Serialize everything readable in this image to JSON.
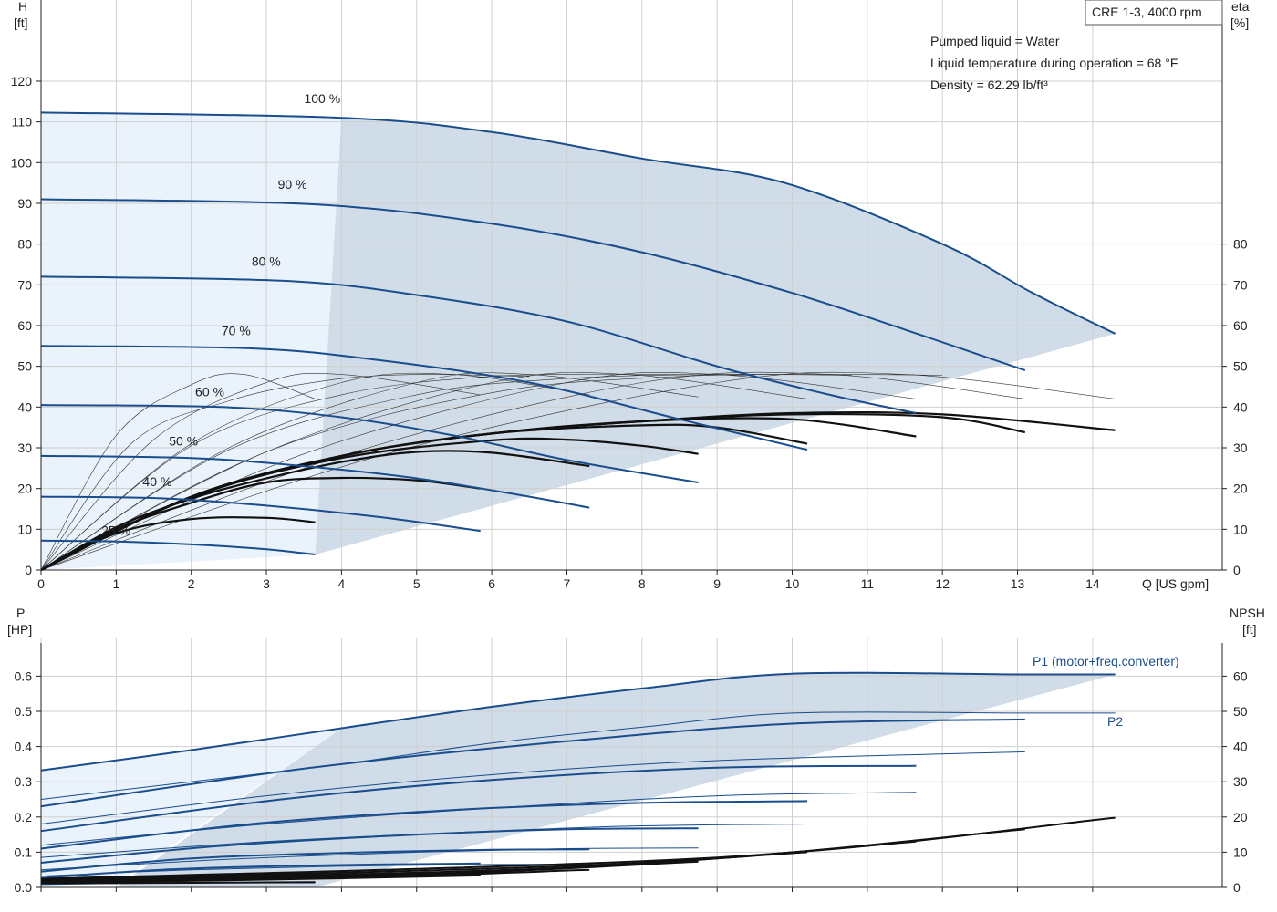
{
  "chart_data": [
    {
      "type": "line",
      "title": "CRE 1-3, 4000 rpm",
      "annotations": [
        "Pumped liquid = Water",
        "Liquid temperature during operation = 68 °F",
        "Density = 62.29 lb/ft³"
      ],
      "xlabel": "Q [US gpm]",
      "ylabel_left": "H",
      "ylabel_left_unit": "[ft]",
      "ylabel_right": "eta",
      "ylabel_right_unit": "[%]",
      "xlim": [
        0,
        14.5
      ],
      "ylim_left": [
        0,
        125
      ],
      "ylim_right": [
        0,
        125
      ],
      "xticks": [
        0,
        1,
        2,
        3,
        4,
        5,
        6,
        7,
        8,
        9,
        10,
        11,
        12,
        13,
        14
      ],
      "yticks_left": [
        0,
        10,
        20,
        30,
        40,
        50,
        60,
        70,
        80,
        90,
        100,
        110,
        120
      ],
      "yticks_right": [
        0,
        10,
        20,
        30,
        40,
        50,
        60,
        70,
        80
      ],
      "accent_color": "#1a4d8c",
      "fill_color": "#d0dce8",
      "fill_light_color": "#eaf2fb",
      "head_series": [
        {
          "name": "100 %",
          "label_at": [
            3.6,
            115.5
          ],
          "x": [
            0,
            4.0,
            6,
            8,
            9.9,
            12,
            13.2,
            14.3
          ],
          "y": [
            112.3,
            111,
            107.5,
            101,
            95,
            80,
            68,
            58
          ]
        },
        {
          "name": "90 %",
          "label_at": [
            3.25,
            94.5
          ],
          "x": [
            0,
            3.6,
            6,
            8,
            10,
            11.5,
            13.1
          ],
          "y": [
            91,
            89.8,
            85,
            78,
            68,
            59,
            49
          ]
        },
        {
          "name": "80 %",
          "label_at": [
            2.9,
            75.5
          ],
          "x": [
            0,
            3.2,
            5,
            7,
            9,
            10.5,
            11.65
          ],
          "y": [
            72,
            71,
            67.5,
            61,
            50,
            43,
            38.5
          ]
        },
        {
          "name": "70 %",
          "label_at": [
            2.5,
            58.5
          ],
          "x": [
            0,
            2.8,
            4.5,
            6.5,
            8.5,
            10.2
          ],
          "y": [
            55,
            54.4,
            51.5,
            46,
            37,
            29.5
          ]
        },
        {
          "name": "60 %",
          "label_at": [
            2.15,
            43.5
          ],
          "x": [
            0,
            2.4,
            4,
            5.5,
            7,
            8.75
          ],
          "y": [
            40.5,
            40,
            37.5,
            33,
            27,
            21.5
          ]
        },
        {
          "name": "50 %",
          "label_at": [
            1.8,
            31.5
          ],
          "x": [
            0,
            2.0,
            3.5,
            5,
            6.5,
            7.3
          ],
          "y": [
            28,
            27.5,
            25.5,
            22.5,
            18,
            15.3
          ]
        },
        {
          "name": "40 %",
          "label_at": [
            1.45,
            21.5
          ],
          "x": [
            0,
            1.6,
            3,
            4.5,
            5.85
          ],
          "y": [
            18,
            17.6,
            15.8,
            13,
            9.6
          ]
        },
        {
          "name": "25 %",
          "label_at": [
            0.9,
            9.5
          ],
          "x": [
            0,
            1.0,
            2,
            3,
            3.65
          ],
          "y": [
            7.2,
            7,
            6.3,
            5.1,
            3.8
          ]
        }
      ],
      "eta_series": [
        {
          "x": [
            0,
            1,
            2,
            3,
            3.65
          ],
          "y": [
            0,
            9,
            12.5,
            12.8,
            11.7
          ]
        },
        {
          "x": [
            0,
            1,
            2,
            3,
            4,
            5,
            5.85
          ],
          "y": [
            0,
            10,
            16.5,
            21.5,
            22.6,
            22,
            20
          ]
        },
        {
          "x": [
            0,
            1,
            2,
            3,
            4,
            5,
            6,
            7.3
          ],
          "y": [
            0,
            10.5,
            17.5,
            22.5,
            26.5,
            29,
            28.8,
            25.5
          ]
        },
        {
          "x": [
            0,
            2,
            4,
            6,
            7,
            8,
            8.75
          ],
          "y": [
            0,
            17.8,
            27.5,
            31.8,
            32,
            30.5,
            28.5
          ]
        },
        {
          "x": [
            0,
            2,
            4,
            6,
            8,
            9,
            10.2
          ],
          "y": [
            0,
            18,
            28,
            33.5,
            35.5,
            35,
            31
          ]
        },
        {
          "x": [
            0,
            2,
            4,
            6,
            8,
            10,
            11.65
          ],
          "y": [
            0,
            18,
            28,
            33.5,
            36.5,
            37,
            32.8
          ]
        },
        {
          "x": [
            0,
            2,
            4,
            6,
            8,
            10,
            12,
            13.1
          ],
          "y": [
            0,
            18,
            28,
            33.5,
            36.5,
            38.2,
            37.5,
            33.8
          ]
        },
        {
          "x": [
            0,
            2,
            4,
            6,
            8,
            10,
            12,
            14.3
          ],
          "y": [
            0,
            18,
            28,
            33.5,
            36.5,
            38.5,
            38.2,
            34.3
          ]
        }
      ],
      "iso_series": [
        {
          "x": [
            0,
            1,
            2,
            2.7,
            3.65
          ],
          "y": [
            0,
            33,
            45.5,
            48,
            42
          ]
        },
        {
          "x": [
            0,
            1.5,
            3,
            4,
            5.85
          ],
          "y": [
            0,
            32,
            46,
            48,
            43
          ]
        },
        {
          "x": [
            0,
            2,
            4,
            5.5,
            7.3
          ],
          "y": [
            0,
            31,
            46,
            48,
            43
          ]
        },
        {
          "x": [
            0,
            2.5,
            5,
            6.5,
            8.75
          ],
          "y": [
            0,
            30,
            46,
            48,
            42.5
          ]
        },
        {
          "x": [
            0,
            3,
            6,
            7.8,
            10.2
          ],
          "y": [
            0,
            29,
            46,
            48,
            42
          ]
        },
        {
          "x": [
            0,
            3.5,
            7,
            9,
            11.65
          ],
          "y": [
            0,
            28.5,
            46,
            48,
            42
          ]
        },
        {
          "x": [
            0,
            4,
            8,
            10.5,
            13.1
          ],
          "y": [
            0,
            28,
            46,
            48,
            42
          ]
        },
        {
          "x": [
            0,
            4.5,
            9,
            11.5,
            14.3
          ],
          "y": [
            0,
            28,
            46,
            48,
            42
          ]
        },
        {
          "x": [
            0,
            2,
            4,
            6,
            8,
            9.5
          ],
          "y": [
            0,
            30.5,
            43,
            47.5,
            48,
            47.8
          ]
        },
        {
          "x": [
            0,
            2.5,
            5,
            7,
            9,
            10.8
          ],
          "y": [
            0,
            29.5,
            43,
            47,
            48,
            47.8
          ]
        },
        {
          "x": [
            0,
            3,
            6,
            8.5,
            10.5,
            12
          ],
          "y": [
            0,
            29,
            43.5,
            47.5,
            48,
            47.8
          ]
        },
        {
          "x": [
            0,
            1.2,
            2.5,
            3.8,
            5,
            6.5
          ],
          "y": [
            0,
            31,
            41.5,
            46.5,
            48,
            47.5
          ]
        }
      ]
    },
    {
      "type": "line",
      "xlabel": "Q [US gpm]",
      "ylabel_left": "P",
      "ylabel_left_unit": "[HP]",
      "ylabel_right": "NPSH",
      "ylabel_right_unit": "[ft]",
      "xlim": [
        0,
        14.5
      ],
      "ylim_left": [
        0,
        0.7
      ],
      "ylim_right": [
        0,
        70
      ],
      "yticks_left": [
        0.0,
        0.1,
        0.2,
        0.3,
        0.4,
        0.5,
        0.6
      ],
      "yticks_left_labels": [
        "0.0",
        "0.1",
        "0.2",
        "0.3",
        "0.4",
        "0.5",
        "0.6"
      ],
      "yticks_right": [
        0,
        10,
        20,
        30,
        40,
        50,
        60
      ],
      "series_labels": {
        "p1": "P1 (motor+freq.converter)",
        "p2": "P2"
      },
      "p1_series": [
        {
          "x": [
            0,
            2,
            4.0,
            6,
            8,
            10,
            13,
            14.3
          ],
          "y": [
            0.332,
            0.39,
            0.452,
            0.513,
            0.565,
            0.607,
            0.605,
            0.605
          ]
        },
        {
          "x": [
            0,
            3.6,
            7,
            10,
            13.1
          ],
          "y": [
            0.23,
            0.34,
            0.415,
            0.465,
            0.477
          ]
        },
        {
          "x": [
            0,
            3.2,
            6,
            9,
            11.65
          ],
          "y": [
            0.16,
            0.25,
            0.305,
            0.34,
            0.345
          ]
        },
        {
          "x": [
            0,
            2.8,
            5.5,
            8,
            10.2
          ],
          "y": [
            0.11,
            0.18,
            0.22,
            0.24,
            0.245
          ]
        },
        {
          "x": [
            0,
            2.4,
            5,
            7,
            8.75
          ],
          "y": [
            0.07,
            0.118,
            0.15,
            0.165,
            0.168
          ]
        },
        {
          "x": [
            0,
            2.0,
            4,
            6,
            7.3
          ],
          "y": [
            0.045,
            0.082,
            0.098,
            0.107,
            0.108
          ]
        },
        {
          "x": [
            0,
            1.6,
            3.5,
            5.85
          ],
          "y": [
            0.027,
            0.05,
            0.062,
            0.068
          ]
        },
        {
          "x": [
            0,
            1.0,
            2.5,
            3.65
          ],
          "y": [
            0.01,
            0.018,
            0.024,
            0.027
          ]
        }
      ],
      "p2_series": [
        {
          "x": [
            0,
            2,
            4,
            6,
            8,
            10,
            13,
            14.3
          ],
          "y": [
            0.25,
            0.3,
            0.35,
            0.41,
            0.455,
            0.495,
            0.495,
            0.495
          ]
        },
        {
          "x": [
            0,
            3,
            6,
            9,
            13.1
          ],
          "y": [
            0.18,
            0.26,
            0.32,
            0.36,
            0.385
          ]
        },
        {
          "x": [
            0,
            3,
            6,
            9,
            11.65
          ],
          "y": [
            0.12,
            0.18,
            0.225,
            0.26,
            0.27
          ]
        },
        {
          "x": [
            0,
            3,
            6,
            8,
            10.2
          ],
          "y": [
            0.085,
            0.13,
            0.16,
            0.175,
            0.18
          ]
        },
        {
          "x": [
            0,
            2.5,
            5,
            7,
            8.75
          ],
          "y": [
            0.05,
            0.08,
            0.1,
            0.11,
            0.112
          ]
        },
        {
          "x": [
            0,
            2,
            4,
            6,
            7.3
          ],
          "y": [
            0.032,
            0.05,
            0.06,
            0.065,
            0.066
          ]
        },
        {
          "x": [
            0,
            1.6,
            3.5,
            5.85
          ],
          "y": [
            0.02,
            0.03,
            0.035,
            0.036
          ]
        },
        {
          "x": [
            0,
            1.0,
            2.5,
            3.65
          ],
          "y": [
            0.008,
            0.011,
            0.013,
            0.013
          ]
        }
      ],
      "npsh_series": [
        {
          "x": [
            0,
            2,
            3.65
          ],
          "y": [
            1.2,
            1.3,
            1.5
          ]
        },
        {
          "x": [
            0,
            3,
            5.85
          ],
          "y": [
            1.3,
            2.2,
            3.4
          ]
        },
        {
          "x": [
            0,
            4,
            7.3
          ],
          "y": [
            1.5,
            2.7,
            5.0
          ]
        },
        {
          "x": [
            0,
            5,
            8.75
          ],
          "y": [
            1.6,
            3.6,
            7.3
          ]
        },
        {
          "x": [
            0,
            6,
            10.2
          ],
          "y": [
            1.8,
            4.6,
            10
          ]
        },
        {
          "x": [
            0,
            7,
            11.65
          ],
          "y": [
            2.0,
            5.6,
            13
          ]
        },
        {
          "x": [
            0,
            8,
            13.1
          ],
          "y": [
            2.2,
            7.0,
            16.5
          ]
        },
        {
          "x": [
            0,
            9,
            14.3
          ],
          "y": [
            2.4,
            8.5,
            19.8
          ]
        }
      ]
    }
  ]
}
